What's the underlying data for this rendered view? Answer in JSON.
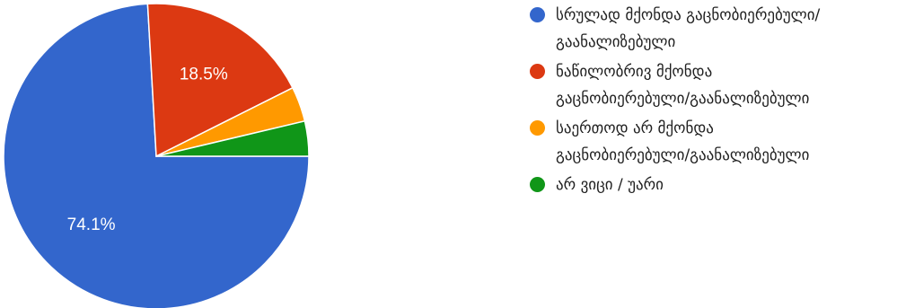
{
  "chart_data": {
    "type": "pie",
    "start_angle_deg": 0,
    "direction": "clockwise",
    "slices": [
      {
        "label": "სრულად მქონდა გაცნობიერებული/\nგაანალიზებული",
        "value": 74.1,
        "display": "74.1%",
        "color": "#3366cc"
      },
      {
        "label": "ნაწილობრივ მქონდა\nგაცნობიერებული/გაანალიზებული",
        "value": 18.5,
        "display": "18.5%",
        "color": "#dc3912"
      },
      {
        "label": "საერთოდ არ მქონდა\nგაცნობიერებული/გაანალიზებული",
        "value": 3.7,
        "display": "",
        "color": "#ff9900"
      },
      {
        "label": "არ ვიცი / უარი",
        "value": 3.7,
        "display": "",
        "color": "#109618"
      }
    ]
  }
}
